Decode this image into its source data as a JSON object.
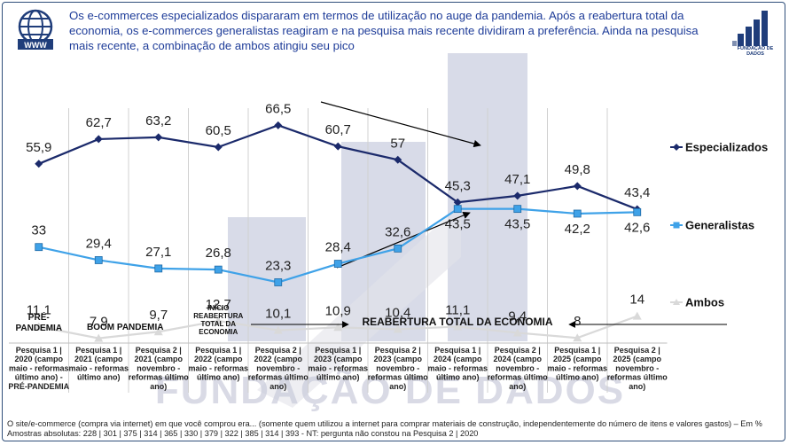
{
  "header": {
    "title": "Os e-commerces especializados dispararam em termos de utilização no auge da pandemia. Após a reabertura total da economia, os e-commerces generalistas reagiram e na pesquisa mais recente dividiram a preferência. Ainda na pesquisa mais recente, a combinação de ambos atingiu seu pico",
    "globe_label": "WWW",
    "logo_text": "FUNDAÇÃO DE DADOS"
  },
  "watermark": "FUNDAÇÃO DE DADOS",
  "chart_data": {
    "type": "line",
    "categories": [
      [
        "Pesquisa 1 |",
        "2020 (campo",
        "maio - reformas",
        "último ano) -",
        "PRÉ-PANDEMIA"
      ],
      [
        "Pesquisa 1 |",
        "2021 (campo",
        "maio - reformas",
        "último ano)"
      ],
      [
        "Pesquisa 2 |",
        "2021 (campo",
        "novembro -",
        "reformas último",
        "ano)"
      ],
      [
        "Pesquisa 1 |",
        "2022 (campo",
        "maio - reformas",
        "último ano)"
      ],
      [
        "Pesquisa 2 |",
        "2022 (campo",
        "novembro -",
        "reformas último",
        "ano)"
      ],
      [
        "Pesquisa 1 |",
        "2023 (campo",
        "maio - reformas",
        "último ano)"
      ],
      [
        "Pesquisa 2 |",
        "2023 (campo",
        "novembro -",
        "reformas último",
        "ano)"
      ],
      [
        "Pesquisa 1 |",
        "2024 (campo",
        "maio - reformas",
        "último ano)"
      ],
      [
        "Pesquisa 2 |",
        "2024 (campo",
        "novembro -",
        "reformas último",
        "ano)"
      ],
      [
        "Pesquisa 1 |",
        "2025 (campo",
        "maio - reformas",
        "último ano)"
      ],
      [
        "Pesquisa 2 |",
        "2025 (campo",
        "novembro -",
        "reformas último",
        "ano)"
      ]
    ],
    "series": [
      {
        "name": "Especializados",
        "color": "#1b2a6b",
        "marker": "diamond",
        "values": [
          55.9,
          62.7,
          63.2,
          60.5,
          66.5,
          60.7,
          57,
          45.3,
          47.1,
          49.8,
          43.4
        ],
        "labels": [
          "55,9",
          "62,7",
          "63,2",
          "60,5",
          "66,5",
          "60,7",
          "57",
          "45,3",
          "47,1",
          "49,8",
          "43,4"
        ]
      },
      {
        "name": "Generalistas",
        "color": "#3fa2e8",
        "marker": "square",
        "values": [
          33,
          29.4,
          27.1,
          26.8,
          23.3,
          28.4,
          32.6,
          43.5,
          43.5,
          42.2,
          42.6
        ],
        "labels": [
          "33",
          "29,4",
          "27,1",
          "26,8",
          "23,3",
          "28,4",
          "32,6",
          "43,5",
          "43,5",
          "42,2",
          "42,6"
        ]
      },
      {
        "name": "Ambos",
        "color": "#d9d9d9",
        "marker": "triangle",
        "values": [
          11.1,
          7.9,
          9.7,
          12.7,
          10.1,
          10.9,
          10.4,
          11.1,
          9.4,
          8,
          14
        ],
        "labels": [
          "11,1",
          "7,9",
          "9,7",
          "12,7",
          "10,1",
          "10,9",
          "10,4",
          "11,1",
          "9,4",
          "8",
          "14"
        ]
      }
    ],
    "annotations": [
      {
        "text": [
          "PRÉ-",
          "PANDEMIA"
        ]
      },
      {
        "text": [
          "BOOM PANDEMIA"
        ]
      },
      {
        "text": [
          "INÍCIO",
          "REABERTURA",
          "TOTAL DA",
          "ECONOMIA"
        ]
      },
      {
        "text": [
          "REABERTURA TOTAL DA ECONOMIA"
        ]
      }
    ],
    "unit": "%"
  },
  "footnote": {
    "line1": "O site/e-commerce (compra via internet) em que você comprou era... (somente quem utilizou a internet para comprar materiais de construção, independentemente do número de itens e valores gastos) – Em %",
    "line2": "Amostras absolutas: 228 | 301 | 375 | 314 | 365 | 330 | 379 | 322 | 385 | 314 | 393 - NT: pergunta não constou na Pesquisa 2 | 2020"
  }
}
